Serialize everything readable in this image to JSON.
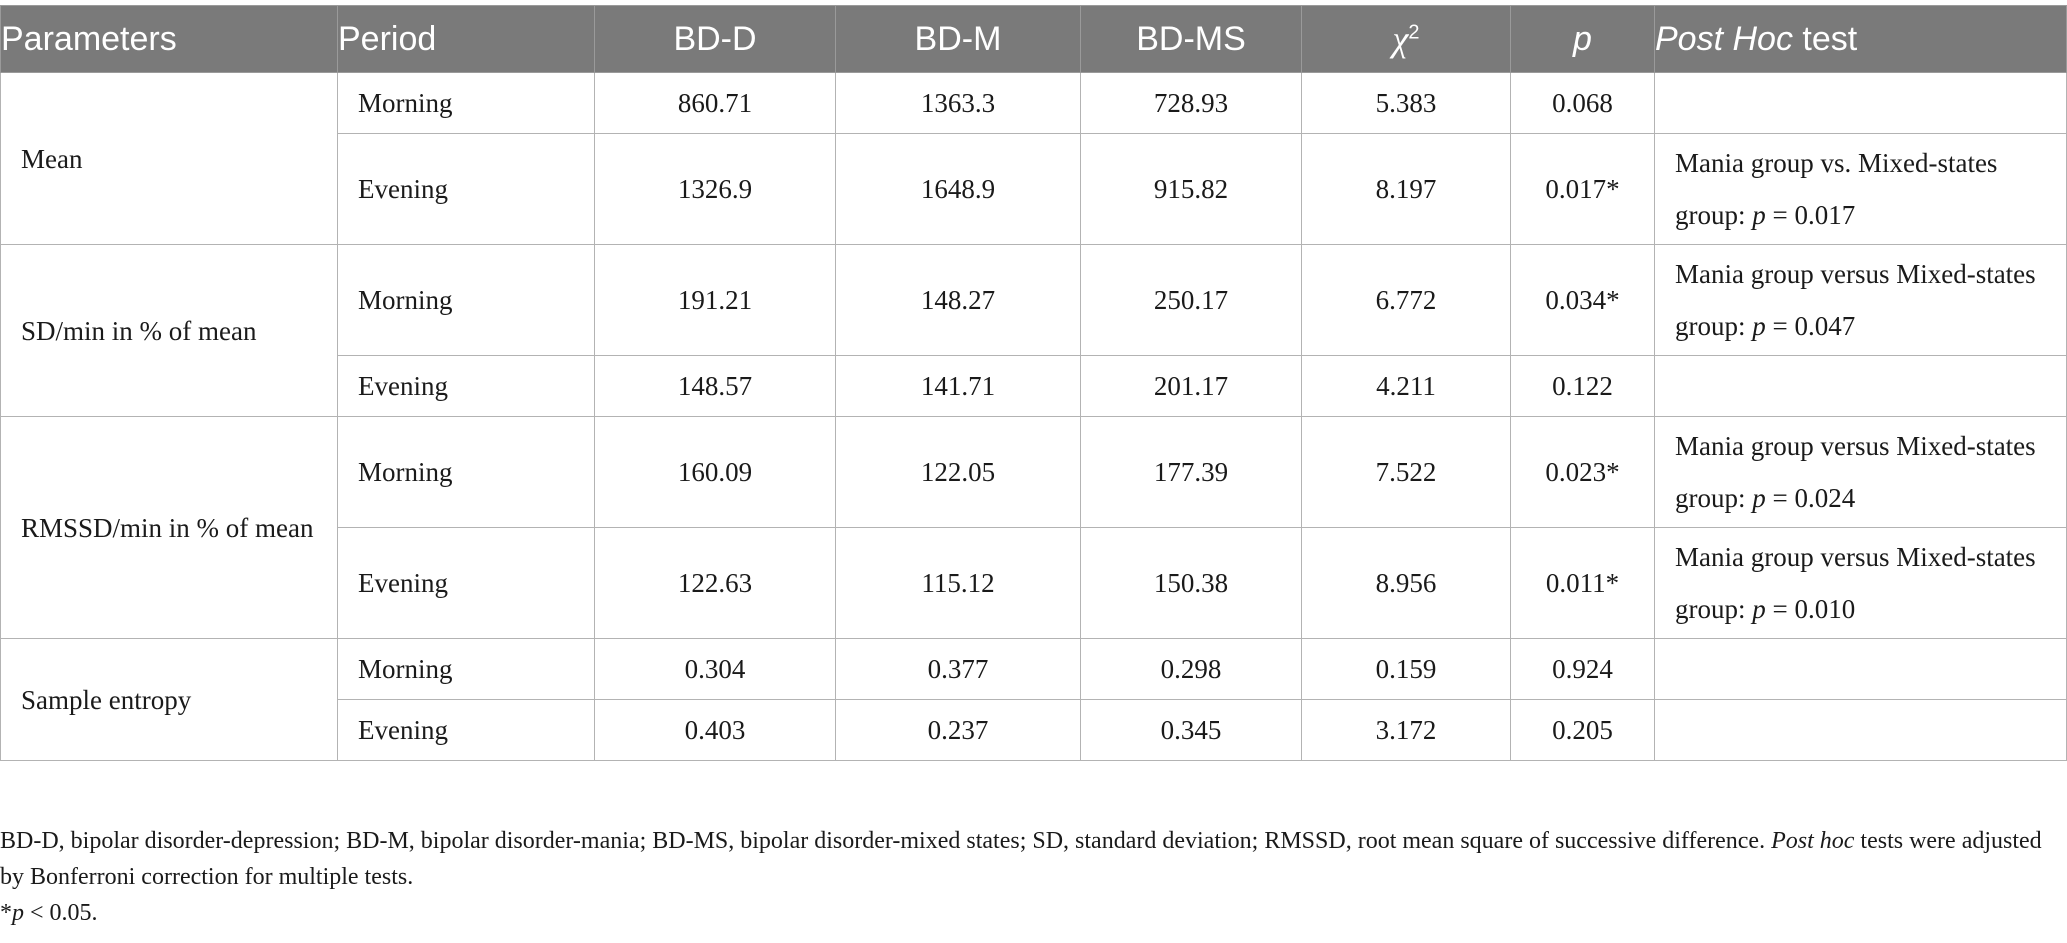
{
  "table": {
    "headers": {
      "parameters": "Parameters",
      "period": "Period",
      "bd_d": "BD-D",
      "bd_m": "BD-M",
      "bd_ms": "BD-MS",
      "chi_symbol": "χ",
      "chi_sup": "2",
      "p": "p",
      "post_hoc_italic": "Post Hoc",
      "post_hoc_rest": " test"
    },
    "groups": [
      {
        "parameter": "Mean",
        "rows": [
          {
            "period": "Morning",
            "bd_d": "860.71",
            "bd_m": "1363.3",
            "bd_ms": "728.93",
            "chi2": "5.383",
            "p": "0.068",
            "post_hoc": {
              "pre": "",
              "p": "",
              "post": ""
            }
          },
          {
            "period": "Evening",
            "bd_d": "1326.9",
            "bd_m": "1648.9",
            "bd_ms": "915.82",
            "chi2": "8.197",
            "p": "0.017*",
            "post_hoc": {
              "pre": "Mania group vs. Mixed-states group: ",
              "p": "p",
              "post": " = 0.017"
            }
          }
        ]
      },
      {
        "parameter": "SD/min in % of mean",
        "rows": [
          {
            "period": "Morning",
            "bd_d": "191.21",
            "bd_m": "148.27",
            "bd_ms": "250.17",
            "chi2": "6.772",
            "p": "0.034*",
            "post_hoc": {
              "pre": "Mania group versus Mixed-states group: ",
              "p": "p",
              "post": " = 0.047"
            }
          },
          {
            "period": "Evening",
            "bd_d": "148.57",
            "bd_m": "141.71",
            "bd_ms": "201.17",
            "chi2": "4.211",
            "p": "0.122",
            "post_hoc": {
              "pre": "",
              "p": "",
              "post": ""
            }
          }
        ]
      },
      {
        "parameter": "RMSSD/min in % of mean",
        "rows": [
          {
            "period": "Morning",
            "bd_d": "160.09",
            "bd_m": "122.05",
            "bd_ms": "177.39",
            "chi2": "7.522",
            "p": "0.023*",
            "post_hoc": {
              "pre": "Mania group versus Mixed-states group: ",
              "p": "p",
              "post": " = 0.024"
            }
          },
          {
            "period": "Evening",
            "bd_d": "122.63",
            "bd_m": "115.12",
            "bd_ms": "150.38",
            "chi2": "8.956",
            "p": "0.011*",
            "post_hoc": {
              "pre": "Mania group versus Mixed-states group: ",
              "p": "p",
              "post": " = 0.010"
            }
          }
        ]
      },
      {
        "parameter": "Sample entropy",
        "rows": [
          {
            "period": "Morning",
            "bd_d": "0.304",
            "bd_m": "0.377",
            "bd_ms": "0.298",
            "chi2": "0.159",
            "p": "0.924",
            "post_hoc": {
              "pre": "",
              "p": "",
              "post": ""
            }
          },
          {
            "period": "Evening",
            "bd_d": "0.403",
            "bd_m": "0.237",
            "bd_ms": "0.345",
            "chi2": "3.172",
            "p": "0.205",
            "post_hoc": {
              "pre": "",
              "p": "",
              "post": ""
            }
          }
        ]
      }
    ]
  },
  "footnotes": {
    "abbrev_main": "BD-D, bipolar disorder-depression; BD-M, bipolar disorder-mania; BD-MS, bipolar disorder-mixed states; SD, standard deviation; RMSSD, root mean square of successive difference. ",
    "abbrev_italic": "Post hoc",
    "abbrev_tail": " tests were adjusted by Bonferroni correction for multiple tests.",
    "sig_star": "*",
    "sig_p": "p",
    "sig_rest": " < 0.05."
  }
}
